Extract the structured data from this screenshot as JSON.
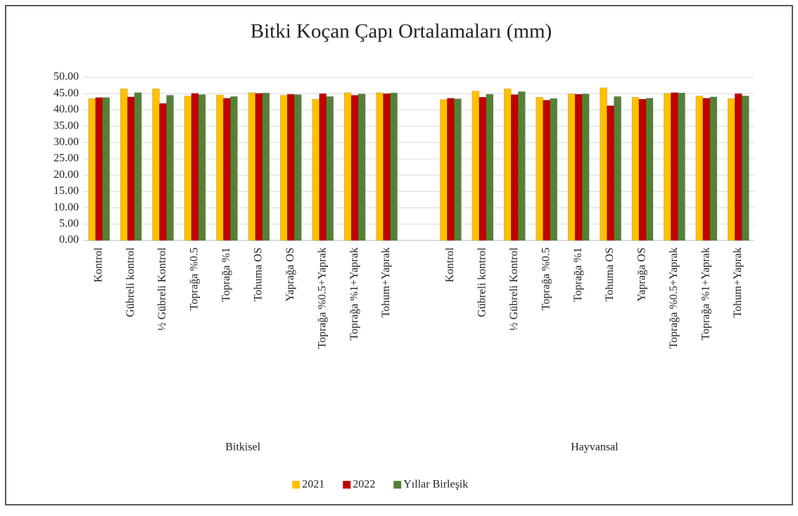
{
  "chart_data": {
    "type": "bar",
    "title": "Bitki Koçan Çapı Ortalamaları (mm)",
    "groups": [
      "Bitkisel",
      "Hayvansal"
    ],
    "categories": [
      "Kontrol",
      "Gübreli kontrol",
      "½ Gübreli Kontrol",
      "Toprağa %0.5",
      "Toprağa %1",
      "Tohuma OS",
      "Yaprağa OS",
      "Toprağa %0.5+Yaprak",
      "Toprağa %1+Yaprak",
      "Tohum+Yaprak",
      "Kontrol",
      "Gübreli kontrol",
      "½ Gübreli Kontrol",
      "Toprağa %0.5",
      "Toprağa %1",
      "Tohuma OS",
      "Yaprağa OS",
      "Toprağa %0.5+Yaprak",
      "Toprağa %1+Yaprak",
      "Tohum+Yaprak"
    ],
    "series": [
      {
        "name": "2021",
        "color": "#ffc000",
        "values": [
          43.5,
          46.5,
          46.5,
          44.3,
          44.6,
          45.3,
          44.5,
          43.3,
          45.3,
          45.3,
          43.2,
          45.8,
          46.5,
          43.9,
          44.9,
          46.8,
          43.9,
          45.1,
          44.3,
          43.5
        ]
      },
      {
        "name": "2022",
        "color": "#c00000",
        "values": [
          43.8,
          44.0,
          42.0,
          45.1,
          43.6,
          45.1,
          44.8,
          45.0,
          44.5,
          45.0,
          43.6,
          43.9,
          44.7,
          43.0,
          44.8,
          41.3,
          43.3,
          45.3,
          43.6,
          45.0
        ]
      },
      {
        "name": "Yıllar Birleşik",
        "color": "#548235",
        "values": [
          43.8,
          45.3,
          44.5,
          44.7,
          44.1,
          45.2,
          44.7,
          44.1,
          44.9,
          45.2,
          43.4,
          44.8,
          45.6,
          43.5,
          44.9,
          44.1,
          43.6,
          45.2,
          44.0,
          44.3
        ]
      }
    ],
    "ylim": [
      0,
      50
    ],
    "yticks": [
      {
        "value": 0,
        "label": "0.00"
      },
      {
        "value": 5,
        "label": "5.00"
      },
      {
        "value": 10,
        "label": "10.00"
      },
      {
        "value": 15,
        "label": "15.00"
      },
      {
        "value": 20,
        "label": "20.00"
      },
      {
        "value": 25,
        "label": "25.00"
      },
      {
        "value": 30,
        "label": "30.00"
      },
      {
        "value": 35,
        "label": "35.00"
      },
      {
        "value": 40,
        "label": "40.00"
      },
      {
        "value": 45,
        "label": "45.00"
      },
      {
        "value": 50,
        "label": "50.00"
      }
    ],
    "grid": true,
    "legend": "bottom"
  }
}
